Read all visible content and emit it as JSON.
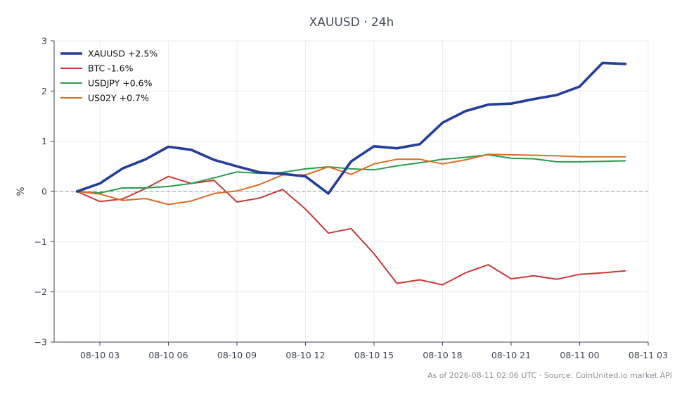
{
  "chart_data": {
    "type": "line",
    "title": "XAUUSD · 24h",
    "ylabel": "%",
    "xlabel": "",
    "ylim": [
      -3,
      3
    ],
    "yticks": [
      -3,
      -2,
      -1,
      0,
      1,
      2,
      3
    ],
    "ytick_labels": [
      "−3",
      "−2",
      "−1",
      "0",
      "1",
      "2",
      "3"
    ],
    "xlim": [
      "2026-08-10 01:00",
      "2026-08-11 03:00"
    ],
    "xticks": [
      "2026-08-10 03:00",
      "2026-08-10 06:00",
      "2026-08-10 09:00",
      "2026-08-10 12:00",
      "2026-08-10 15:00",
      "2026-08-10 18:00",
      "2026-08-10 21:00",
      "2026-08-11 00:00",
      "2026-08-11 03:00"
    ],
    "xtick_labels": [
      "08-10 03",
      "08-10 06",
      "08-10 09",
      "08-10 12",
      "08-10 15",
      "08-10 18",
      "08-10 21",
      "08-11 00",
      "08-11 03"
    ],
    "x": [
      "2026-08-10 02:00",
      "2026-08-10 03:00",
      "2026-08-10 04:00",
      "2026-08-10 05:00",
      "2026-08-10 06:00",
      "2026-08-10 07:00",
      "2026-08-10 08:00",
      "2026-08-10 09:00",
      "2026-08-10 10:00",
      "2026-08-10 11:00",
      "2026-08-10 12:00",
      "2026-08-10 13:00",
      "2026-08-10 14:00",
      "2026-08-10 15:00",
      "2026-08-10 16:00",
      "2026-08-10 17:00",
      "2026-08-10 18:00",
      "2026-08-10 19:00",
      "2026-08-10 20:00",
      "2026-08-10 21:00",
      "2026-08-10 22:00",
      "2026-08-10 23:00",
      "2026-08-11 00:00",
      "2026-08-11 01:00",
      "2026-08-11 02:00"
    ],
    "series": [
      {
        "name": "XAUUSD +2.5%",
        "color": "#233f99",
        "values": [
          0.0,
          0.16,
          0.46,
          0.64,
          0.89,
          0.83,
          0.63,
          0.5,
          0.38,
          0.35,
          0.3,
          -0.04,
          0.6,
          0.9,
          0.86,
          0.94,
          1.37,
          1.6,
          1.73,
          1.75,
          1.84,
          1.92,
          2.09,
          2.56,
          2.54
        ]
      },
      {
        "name": "BTC -1.6%",
        "color": "#c83a37",
        "values": [
          0.0,
          -0.2,
          -0.15,
          0.06,
          0.3,
          0.16,
          0.22,
          -0.21,
          -0.13,
          0.04,
          -0.35,
          -0.83,
          -0.74,
          -1.24,
          -1.83,
          -1.76,
          -1.86,
          -1.62,
          -1.46,
          -1.74,
          -1.68,
          -1.75,
          -1.65,
          -1.62,
          -1.58
        ]
      },
      {
        "name": "USDJPY +0.6%",
        "color": "#2e9a4f",
        "values": [
          0.0,
          -0.03,
          0.07,
          0.07,
          0.1,
          0.16,
          0.27,
          0.39,
          0.36,
          0.38,
          0.45,
          0.49,
          0.45,
          0.43,
          0.51,
          0.57,
          0.64,
          0.68,
          0.73,
          0.66,
          0.65,
          0.59,
          0.59,
          0.6,
          0.61
        ]
      },
      {
        "name": "US02Y +0.7%",
        "color": "#dd6b23",
        "values": [
          0.0,
          -0.05,
          -0.18,
          -0.14,
          -0.26,
          -0.19,
          -0.04,
          0.01,
          0.14,
          0.33,
          0.33,
          0.49,
          0.34,
          0.55,
          0.64,
          0.64,
          0.55,
          0.63,
          0.74,
          0.73,
          0.72,
          0.71,
          0.69,
          0.69,
          0.69
        ]
      }
    ],
    "legend_position": "top-left",
    "grid": true,
    "zero_line": true
  },
  "footer": {
    "text": "As of 2026-08-11 02:06 UTC · Source: CoinUnited.io market API"
  }
}
